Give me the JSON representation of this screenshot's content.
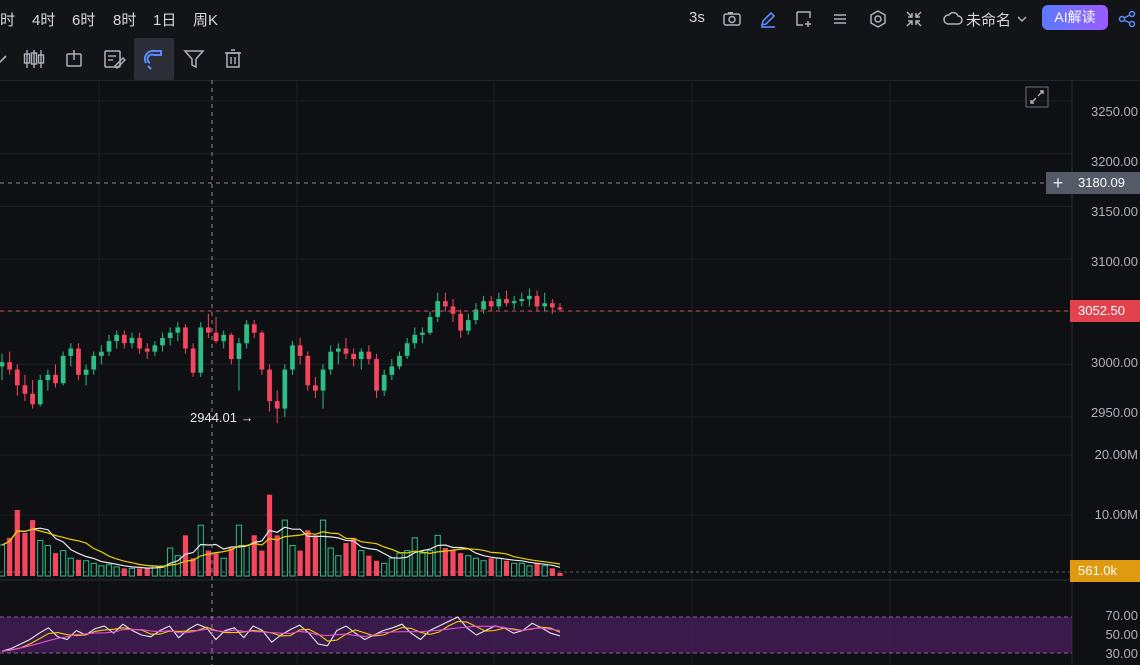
{
  "topbar": {
    "timeframes": [
      "时",
      "4时",
      "6时",
      "8时",
      "1日",
      "周K"
    ],
    "refresh": "3s",
    "layout_name": "未命名",
    "ai_button": "AI解读"
  },
  "price_axis": {
    "ticks": [
      "3250.00",
      "3200.00",
      "3150.00",
      "3100.00",
      "3000.00",
      "2950.00"
    ],
    "crosshair_price": "3180.09",
    "last_price": "3052.50",
    "low_marker": "2944.01"
  },
  "volume_axis": {
    "ticks": [
      "20.00M",
      "10.00M"
    ],
    "last_volume": "561.0k"
  },
  "rsi_axis": {
    "ticks": [
      "70.00",
      "50.00",
      "30.00"
    ]
  },
  "colors": {
    "up": "#2ebd85",
    "down": "#f6465d",
    "price_tag": "#e0424e",
    "volume_tag": "#e09a10",
    "crosshair_tag": "#545a66",
    "rsi_band": "#4a1d5c"
  },
  "chart_data": {
    "type": "candlestick",
    "price_range": [
      2930,
      3270
    ],
    "candles": [
      [
        2998,
        3010,
        2985,
        3002
      ],
      [
        3002,
        3012,
        2990,
        2995
      ],
      [
        2995,
        3000,
        2970,
        2980
      ],
      [
        2980,
        2990,
        2965,
        2972
      ],
      [
        2972,
        2985,
        2958,
        2962
      ],
      [
        2962,
        2990,
        2960,
        2985
      ],
      [
        2985,
        2995,
        2975,
        2990
      ],
      [
        2990,
        3000,
        2978,
        2982
      ],
      [
        2982,
        3012,
        2980,
        3008
      ],
      [
        3008,
        3020,
        2998,
        3015
      ],
      [
        3015,
        3020,
        2985,
        2990
      ],
      [
        2990,
        3000,
        2980,
        2995
      ],
      [
        2995,
        3012,
        2990,
        3008
      ],
      [
        3008,
        3018,
        3000,
        3012
      ],
      [
        3012,
        3028,
        3008,
        3022
      ],
      [
        3022,
        3032,
        3015,
        3028
      ],
      [
        3028,
        3032,
        3015,
        3020
      ],
      [
        3020,
        3030,
        3015,
        3025
      ],
      [
        3025,
        3030,
        3010,
        3015
      ],
      [
        3015,
        3020,
        3005,
        3012
      ],
      [
        3012,
        3022,
        3008,
        3018
      ],
      [
        3018,
        3030,
        3012,
        3025
      ],
      [
        3025,
        3035,
        3018,
        3030
      ],
      [
        3030,
        3040,
        3022,
        3035
      ],
      [
        3035,
        3038,
        3010,
        3015
      ],
      [
        3015,
        3020,
        2988,
        2992
      ],
      [
        2992,
        3040,
        2988,
        3035
      ],
      [
        3035,
        3048,
        3025,
        3030
      ],
      [
        3030,
        3045,
        3020,
        3022
      ],
      [
        3022,
        3032,
        3015,
        3028
      ],
      [
        3028,
        3030,
        3000,
        3005
      ],
      [
        3005,
        3025,
        2975,
        3020
      ],
      [
        3020,
        3042,
        3015,
        3038
      ],
      [
        3038,
        3042,
        3025,
        3030
      ],
      [
        3030,
        3032,
        2990,
        2995
      ],
      [
        2995,
        3000,
        2955,
        2965
      ],
      [
        2965,
        2975,
        2944,
        2958
      ],
      [
        2958,
        3000,
        2950,
        2995
      ],
      [
        2995,
        3022,
        2990,
        3018
      ],
      [
        3018,
        3025,
        3000,
        3008
      ],
      [
        3008,
        3012,
        2975,
        2980
      ],
      [
        2980,
        2988,
        2968,
        2975
      ],
      [
        2975,
        3000,
        2958,
        2995
      ],
      [
        2995,
        3018,
        2990,
        3012
      ],
      [
        3012,
        3020,
        3000,
        3015
      ],
      [
        3015,
        3025,
        3005,
        3010
      ],
      [
        3010,
        3015,
        2998,
        3005
      ],
      [
        3005,
        3015,
        2995,
        3012
      ],
      [
        3012,
        3018,
        3000,
        3005
      ],
      [
        3005,
        3010,
        2968,
        2975
      ],
      [
        2975,
        2995,
        2970,
        2990
      ],
      [
        2990,
        3005,
        2985,
        2998
      ],
      [
        2998,
        3012,
        2995,
        3008
      ],
      [
        3008,
        3025,
        3005,
        3020
      ],
      [
        3020,
        3035,
        3015,
        3028
      ],
      [
        3028,
        3035,
        3020,
        3030
      ],
      [
        3030,
        3050,
        3028,
        3045
      ],
      [
        3045,
        3068,
        3040,
        3060
      ],
      [
        3060,
        3068,
        3050,
        3055
      ],
      [
        3055,
        3062,
        3040,
        3048
      ],
      [
        3048,
        3052,
        3025,
        3032
      ],
      [
        3032,
        3048,
        3028,
        3042
      ],
      [
        3042,
        3058,
        3038,
        3052
      ],
      [
        3052,
        3065,
        3048,
        3060
      ],
      [
        3060,
        3065,
        3050,
        3055
      ],
      [
        3055,
        3068,
        3052,
        3062
      ],
      [
        3062,
        3070,
        3055,
        3058
      ],
      [
        3058,
        3065,
        3052,
        3060
      ],
      [
        3060,
        3068,
        3055,
        3062
      ],
      [
        3062,
        3072,
        3055,
        3065
      ],
      [
        3065,
        3070,
        3050,
        3055
      ],
      [
        3055,
        3068,
        3050,
        3058
      ],
      [
        3058,
        3062,
        3048,
        3054
      ],
      [
        3054,
        3058,
        3050,
        3052
      ]
    ],
    "volume_range": [
      0,
      25000000
    ],
    "volume": [
      6.1,
      7.5,
      13.0,
      8.5,
      11.0,
      7.0,
      6.0,
      4.5,
      5.0,
      3.5,
      3.2,
      3.0,
      2.5,
      2.0,
      2.2,
      1.8,
      1.5,
      1.5,
      1.5,
      1.5,
      2.0,
      2.0,
      5.5,
      4.0,
      8.0,
      3.5,
      10.0,
      5.0,
      4.5,
      3.5,
      5.5,
      10.0,
      6.0,
      8.0,
      5.0,
      16.0,
      8.0,
      11.0,
      6.0,
      5.0,
      9.0,
      8.0,
      11.0,
      5.5,
      4.0,
      6.5,
      7.5,
      5.0,
      4.0,
      3.0,
      2.5,
      3.5,
      4.5,
      5.0,
      7.5,
      4.5,
      5.0,
      8.0,
      5.5,
      5.0,
      4.5,
      4.0,
      3.5,
      3.0,
      3.5,
      3.5,
      3.0,
      2.5,
      2.5,
      2.0,
      2.5,
      2.0,
      1.5,
      0.6
    ],
    "rsi_range": [
      30,
      70
    ],
    "rsi": [
      32,
      35,
      40,
      45,
      52,
      58,
      48,
      45,
      55,
      50,
      57,
      60,
      52,
      62,
      55,
      50,
      48,
      55,
      60,
      47,
      56,
      62,
      58,
      45,
      55,
      58,
      47,
      60,
      55,
      42,
      50,
      56,
      61,
      52,
      40,
      38,
      55,
      60,
      52,
      45,
      50,
      55,
      58,
      62,
      52,
      45,
      55,
      60,
      65,
      70,
      58,
      50,
      55,
      60,
      58,
      52,
      55,
      63,
      58,
      52,
      49
    ]
  }
}
